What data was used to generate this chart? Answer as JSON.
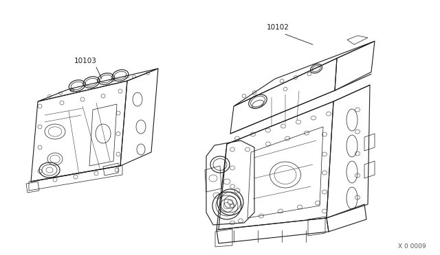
{
  "bg_color": "#ffffff",
  "line_color": "#1a1a1a",
  "label_color": "#1a1a1a",
  "part1_label": "10103",
  "part2_label": "10102",
  "watermark": "X 0 0009",
  "fig_width": 6.4,
  "fig_height": 3.72,
  "dpi": 100,
  "lw_main": 0.8,
  "lw_detail": 0.5,
  "lw_fine": 0.35
}
